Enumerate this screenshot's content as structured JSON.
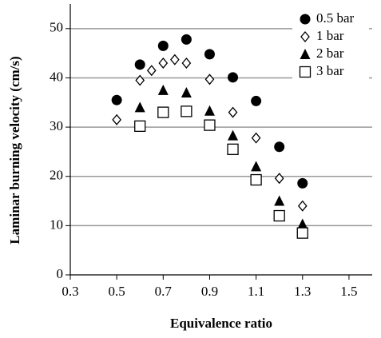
{
  "chart_data": {
    "type": "scatter",
    "x_label": "Equivalence ratio",
    "y_label": "Laminar burning velocity (cm/s)",
    "xlim": [
      0.3,
      1.6
    ],
    "xticks": [
      0.3,
      0.5,
      0.7,
      0.9,
      1.1,
      1.3,
      1.5
    ],
    "ylim": [
      0,
      55
    ],
    "yticks": [
      0,
      10,
      20,
      30,
      40,
      50
    ],
    "grid": true,
    "legend": "upper right",
    "series": [
      {
        "name": "0.5 bar",
        "color": "#000000",
        "marker": "circle",
        "x": [
          0.5,
          0.6,
          0.7,
          0.8,
          0.9,
          1.0,
          1.1,
          1.2,
          1.3
        ],
        "values": [
          35.5,
          42.7,
          46.5,
          47.8,
          44.8,
          40.1,
          35.3,
          26,
          18.6
        ]
      },
      {
        "name": "1 bar",
        "color": "#000000",
        "marker": "diamond",
        "x": [
          0.5,
          0.6,
          0.65,
          0.7,
          0.75,
          0.8,
          0.9,
          1.0,
          1.1,
          1.2,
          1.3
        ],
        "values": [
          31.5,
          39.5,
          41.5,
          43,
          43.7,
          43,
          39.7,
          33,
          27.8,
          19.6,
          14
        ]
      },
      {
        "name": "2 bar",
        "color": "#000000",
        "marker": "triangle",
        "x": [
          0.6,
          0.7,
          0.8,
          0.9,
          1.0,
          1.1,
          1.2,
          1.3
        ],
        "values": [
          34,
          37.5,
          37,
          33.3,
          28.3,
          22,
          15,
          10.3
        ]
      },
      {
        "name": "3 bar",
        "color": "#000000",
        "marker": "square",
        "x": [
          0.6,
          0.7,
          0.8,
          0.9,
          1.0,
          1.1,
          1.2,
          1.3
        ],
        "values": [
          30.2,
          33,
          33.2,
          30.4,
          25.5,
          19.3,
          12,
          8.5
        ]
      }
    ]
  }
}
